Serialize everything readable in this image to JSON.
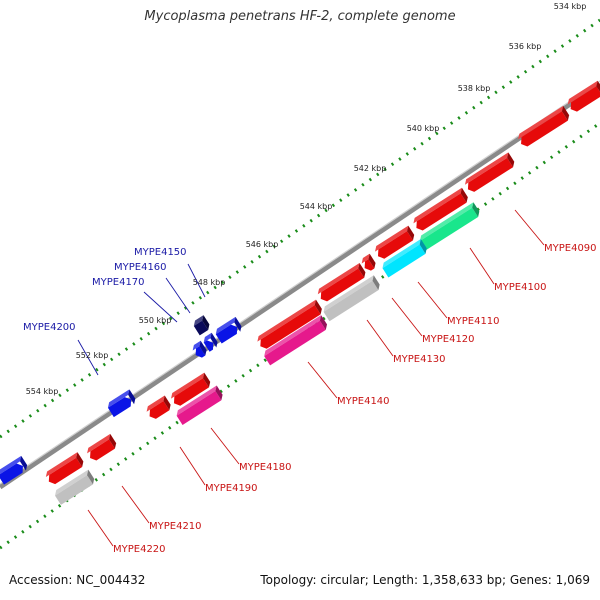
{
  "title": "Mycoplasma penetrans HF-2, complete genome",
  "accession": "Accession: NC_004432",
  "summary": "Topology: circular; Length: 1,358,633 bp; Genes: 1,069",
  "ruler": {
    "tick_labels": [
      "534 kbp",
      "536 kbp",
      "538 kbp",
      "540 kbp",
      "542 kbp",
      "544 kbp",
      "546 kbp",
      "548 kbp",
      "550 kbp",
      "552 kbp",
      "554 kbp"
    ]
  },
  "genes": {
    "forward_labels": [
      "MYPE4150",
      "MYPE4160",
      "MYPE4170",
      "MYPE4200"
    ],
    "reverse_labels": [
      "MYPE4090",
      "MYPE4100",
      "MYPE4110",
      "MYPE4120",
      "MYPE4130",
      "MYPE4140",
      "MYPE4180",
      "MYPE4190",
      "MYPE4210",
      "MYPE4220"
    ]
  },
  "colors": {
    "forward_cds": "#0a14e6",
    "reverse_cds": "#e60a0a",
    "label_forward": "#1a1aa6",
    "label_reverse": "#c81414",
    "backbone": "#7a7a7a",
    "ruler_dots": "#1a8c1a",
    "feature_cyan": "#00e5ff",
    "feature_green": "#19e68c",
    "feature_grey": "#c0c0c0",
    "feature_pink": "#e6198c"
  }
}
